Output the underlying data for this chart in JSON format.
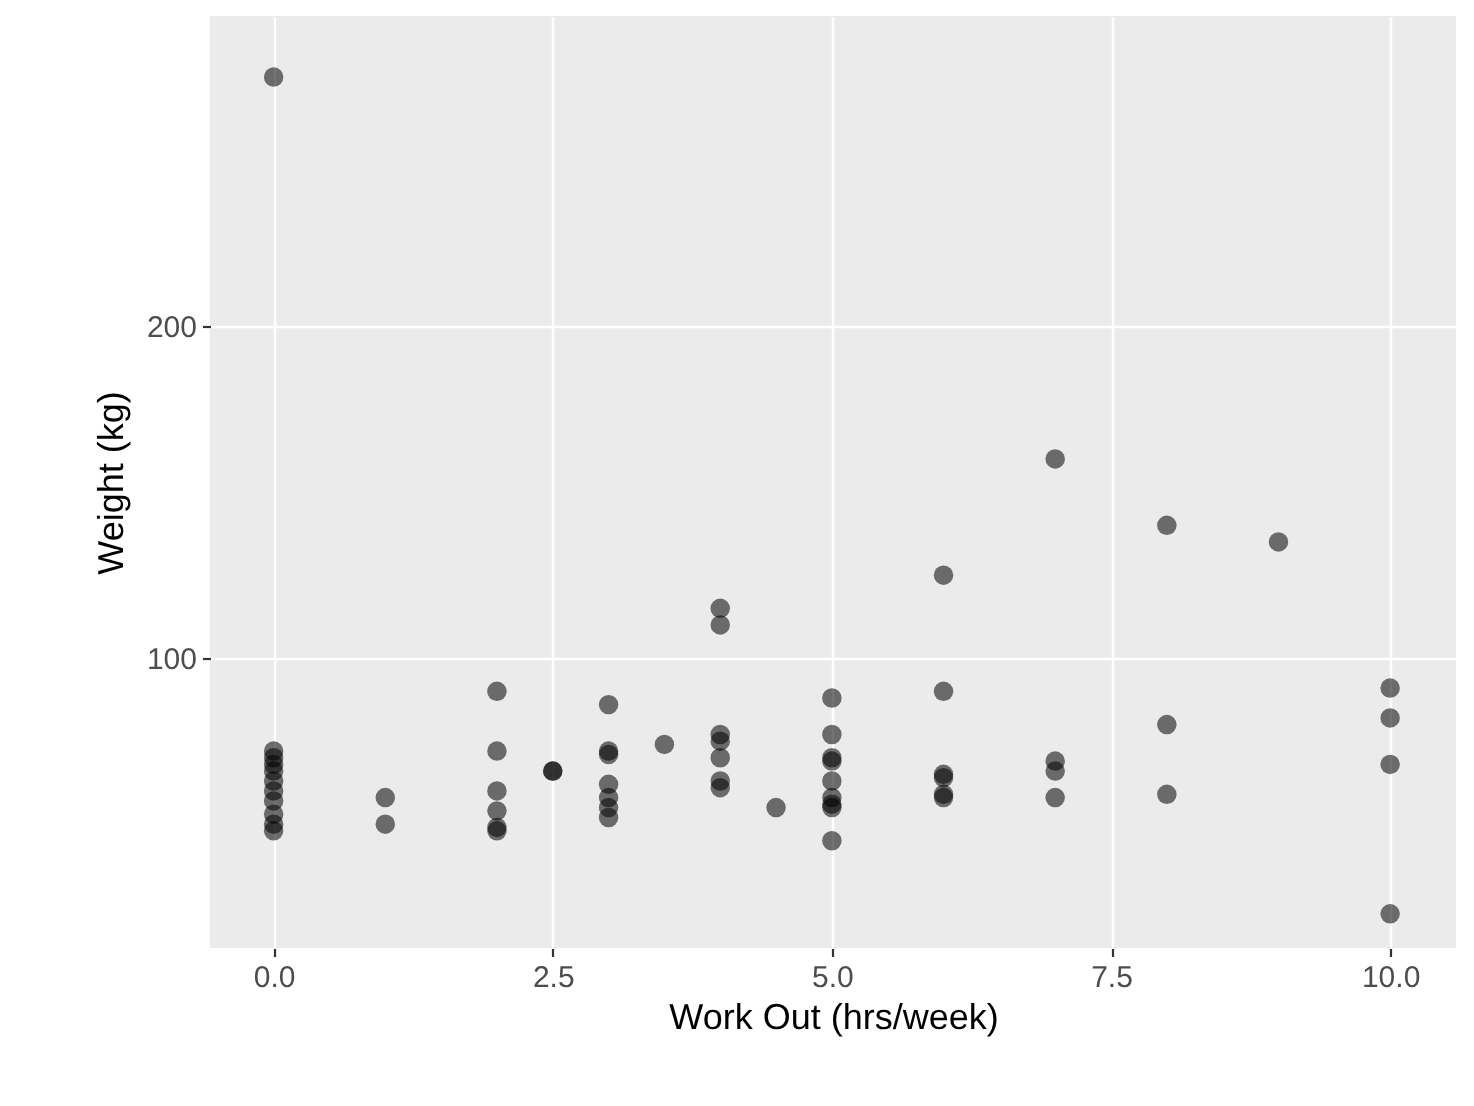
{
  "chart_data": {
    "type": "scatter",
    "xlabel": "Work Out (hrs/week)",
    "ylabel": "Weight (kg)",
    "xlim": [
      -0.57,
      10.59
    ],
    "ylim": [
      12.7,
      293.4
    ],
    "xticks": [
      {
        "value": 0,
        "label": "0.0"
      },
      2.5,
      {
        "value": 5,
        "label": "5.0"
      },
      7.5,
      {
        "value": 10,
        "label": "10.0"
      }
    ],
    "yticks": [
      100,
      200
    ],
    "grid": true,
    "marker": "circle",
    "series": [
      {
        "color": "#000000",
        "x": [
          0,
          0,
          0,
          0,
          0,
          0,
          0,
          0,
          0,
          0,
          0,
          1,
          1,
          2,
          2,
          2,
          2,
          2,
          2,
          2.5,
          2.5,
          3,
          3,
          3,
          3,
          3,
          3,
          3,
          3.5,
          4,
          4,
          4,
          4,
          4,
          4,
          4,
          4.5,
          5,
          5,
          5,
          5,
          5,
          5,
          5,
          5,
          5,
          6,
          6,
          6,
          6,
          6,
          6,
          7,
          7,
          7,
          7,
          8,
          8,
          8,
          9,
          10,
          10,
          10,
          10
        ],
        "values": [
          275,
          72,
          70,
          68,
          66,
          63,
          60,
          57,
          53,
          50,
          48,
          58,
          50,
          90,
          72,
          60,
          54,
          49,
          48,
          66,
          66,
          86,
          72,
          71,
          62,
          58,
          55,
          52,
          74,
          115,
          110,
          77,
          75,
          70,
          63,
          61,
          55,
          88,
          77,
          70,
          69,
          63,
          58,
          56,
          55,
          45,
          125,
          90,
          65,
          64,
          59,
          58,
          160,
          69,
          66,
          58,
          140,
          80,
          59,
          135,
          91,
          82,
          68,
          23
        ]
      }
    ]
  }
}
